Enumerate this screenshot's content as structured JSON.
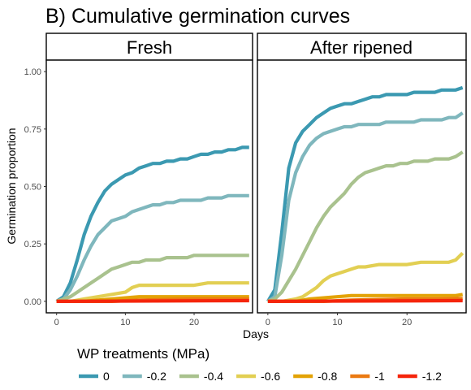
{
  "chart_data": {
    "type": "line",
    "title": "B) Cumulative germination curves",
    "xlabel": "Days",
    "ylabel": "Germination proportion",
    "xlim": [
      -1.5,
      28.5
    ],
    "ylim": [
      -0.05,
      1.05
    ],
    "xticks": [
      0,
      10,
      20
    ],
    "yticks": [
      "0.00",
      "0.25",
      "0.50",
      "0.75",
      "1.00"
    ],
    "grid": false,
    "legend": {
      "title": "WP treatments (MPa)",
      "position": "bottom",
      "entries": [
        {
          "label": "0",
          "color": "#3b99b1"
        },
        {
          "label": "-0.2",
          "color": "#7fb7bd"
        },
        {
          "label": "-0.4",
          "color": "#a9c28e"
        },
        {
          "label": "-0.6",
          "color": "#e2cf53"
        },
        {
          "label": "-0.8",
          "color": "#e3a306"
        },
        {
          "label": "-1",
          "color": "#eb7a12"
        },
        {
          "label": "-1.2",
          "color": "#f5250b"
        }
      ]
    },
    "panels": [
      {
        "title": "Fresh",
        "series": [
          {
            "name": "0",
            "color": "#3b99b1",
            "x": [
              0,
              1,
              2,
              3,
              4,
              5,
              6,
              7,
              8,
              9,
              10,
              11,
              12,
              13,
              14,
              15,
              16,
              17,
              18,
              19,
              20,
              21,
              22,
              23,
              24,
              25,
              26,
              27,
              28
            ],
            "y": [
              0,
              0.02,
              0.08,
              0.18,
              0.29,
              0.37,
              0.43,
              0.48,
              0.51,
              0.53,
              0.55,
              0.56,
              0.58,
              0.59,
              0.6,
              0.6,
              0.61,
              0.61,
              0.62,
              0.62,
              0.63,
              0.64,
              0.64,
              0.65,
              0.65,
              0.66,
              0.66,
              0.67,
              0.67
            ]
          },
          {
            "name": "-0.2",
            "color": "#7fb7bd",
            "x": [
              0,
              1,
              2,
              3,
              4,
              5,
              6,
              7,
              8,
              9,
              10,
              11,
              12,
              13,
              14,
              15,
              16,
              17,
              18,
              19,
              20,
              21,
              22,
              23,
              24,
              25,
              26,
              27,
              28
            ],
            "y": [
              0,
              0.01,
              0.05,
              0.11,
              0.18,
              0.24,
              0.29,
              0.32,
              0.35,
              0.36,
              0.37,
              0.39,
              0.4,
              0.41,
              0.42,
              0.42,
              0.43,
              0.43,
              0.44,
              0.44,
              0.44,
              0.44,
              0.45,
              0.45,
              0.45,
              0.46,
              0.46,
              0.46,
              0.46
            ]
          },
          {
            "name": "-0.4",
            "color": "#a9c28e",
            "x": [
              0,
              1,
              2,
              3,
              4,
              5,
              6,
              7,
              8,
              9,
              10,
              11,
              12,
              13,
              14,
              15,
              16,
              17,
              18,
              19,
              20,
              21,
              22,
              23,
              24,
              25,
              26,
              27,
              28
            ],
            "y": [
              0,
              0.01,
              0.02,
              0.04,
              0.06,
              0.08,
              0.1,
              0.12,
              0.14,
              0.15,
              0.16,
              0.17,
              0.17,
              0.18,
              0.18,
              0.18,
              0.19,
              0.19,
              0.19,
              0.19,
              0.2,
              0.2,
              0.2,
              0.2,
              0.2,
              0.2,
              0.2,
              0.2,
              0.2
            ]
          },
          {
            "name": "-0.6",
            "color": "#e2cf53",
            "x": [
              0,
              2,
              4,
              6,
              8,
              10,
              11,
              12,
              14,
              16,
              18,
              20,
              22,
              24,
              26,
              28
            ],
            "y": [
              0,
              0,
              0.01,
              0.02,
              0.03,
              0.04,
              0.06,
              0.07,
              0.07,
              0.07,
              0.07,
              0.07,
              0.08,
              0.08,
              0.08,
              0.08
            ]
          },
          {
            "name": "-0.8",
            "color": "#e3a306",
            "x": [
              0,
              4,
              6,
              8,
              10,
              12,
              14,
              16,
              20,
              24,
              28
            ],
            "y": [
              0,
              0,
              0.005,
              0.01,
              0.015,
              0.02,
              0.02,
              0.02,
              0.02,
              0.02,
              0.02
            ]
          },
          {
            "name": "-1",
            "color": "#eb7a12",
            "x": [
              0,
              8,
              12,
              16,
              20,
              24,
              28
            ],
            "y": [
              0,
              0,
              0.005,
              0.008,
              0.01,
              0.01,
              0.01
            ]
          },
          {
            "name": "-1.2",
            "color": "#f5250b",
            "x": [
              0,
              28
            ],
            "y": [
              0,
              0.003
            ]
          }
        ]
      },
      {
        "title": "After ripened",
        "series": [
          {
            "name": "0",
            "color": "#3b99b1",
            "x": [
              0,
              1,
              2,
              3,
              4,
              5,
              6,
              7,
              8,
              9,
              10,
              11,
              12,
              13,
              14,
              15,
              16,
              17,
              18,
              19,
              20,
              21,
              22,
              23,
              24,
              25,
              26,
              27,
              28
            ],
            "y": [
              0,
              0.05,
              0.3,
              0.58,
              0.69,
              0.74,
              0.77,
              0.8,
              0.82,
              0.84,
              0.85,
              0.86,
              0.86,
              0.87,
              0.88,
              0.89,
              0.89,
              0.9,
              0.9,
              0.9,
              0.9,
              0.91,
              0.91,
              0.91,
              0.91,
              0.92,
              0.92,
              0.92,
              0.93
            ]
          },
          {
            "name": "-0.2",
            "color": "#7fb7bd",
            "x": [
              0,
              1,
              2,
              3,
              4,
              5,
              6,
              7,
              8,
              9,
              10,
              11,
              12,
              13,
              14,
              15,
              16,
              17,
              18,
              19,
              20,
              21,
              22,
              23,
              24,
              25,
              26,
              27,
              28
            ],
            "y": [
              0,
              0.02,
              0.2,
              0.44,
              0.56,
              0.63,
              0.68,
              0.71,
              0.73,
              0.74,
              0.75,
              0.76,
              0.76,
              0.77,
              0.77,
              0.77,
              0.77,
              0.78,
              0.78,
              0.78,
              0.78,
              0.78,
              0.79,
              0.79,
              0.79,
              0.79,
              0.8,
              0.8,
              0.82
            ]
          },
          {
            "name": "-0.4",
            "color": "#a9c28e",
            "x": [
              0,
              1,
              2,
              3,
              4,
              5,
              6,
              7,
              8,
              9,
              10,
              11,
              12,
              13,
              14,
              15,
              16,
              17,
              18,
              19,
              20,
              21,
              22,
              23,
              24,
              25,
              26,
              27,
              28
            ],
            "y": [
              0,
              0.01,
              0.04,
              0.09,
              0.14,
              0.2,
              0.26,
              0.32,
              0.37,
              0.41,
              0.44,
              0.47,
              0.51,
              0.54,
              0.56,
              0.57,
              0.58,
              0.59,
              0.59,
              0.6,
              0.6,
              0.61,
              0.61,
              0.61,
              0.62,
              0.62,
              0.62,
              0.63,
              0.65
            ]
          },
          {
            "name": "-0.6",
            "color": "#e2cf53",
            "x": [
              0,
              2,
              4,
              5,
              6,
              7,
              8,
              9,
              10,
              11,
              12,
              13,
              14,
              16,
              18,
              20,
              22,
              24,
              26,
              27,
              28
            ],
            "y": [
              0,
              0,
              0.01,
              0.02,
              0.04,
              0.06,
              0.09,
              0.11,
              0.12,
              0.13,
              0.14,
              0.15,
              0.15,
              0.16,
              0.16,
              0.16,
              0.17,
              0.17,
              0.17,
              0.18,
              0.21
            ]
          },
          {
            "name": "-0.8",
            "color": "#e3a306",
            "x": [
              0,
              4,
              6,
              8,
              10,
              12,
              14,
              16,
              20,
              24,
              27,
              28
            ],
            "y": [
              0,
              0,
              0.01,
              0.015,
              0.02,
              0.025,
              0.025,
              0.025,
              0.025,
              0.025,
              0.025,
              0.03
            ]
          },
          {
            "name": "-1",
            "color": "#eb7a12",
            "x": [
              0,
              8,
              12,
              16,
              20,
              24,
              28
            ],
            "y": [
              0,
              0,
              0.005,
              0.008,
              0.01,
              0.01,
              0.012
            ]
          },
          {
            "name": "-1.2",
            "color": "#f5250b",
            "x": [
              0,
              28
            ],
            "y": [
              0,
              0.003
            ]
          }
        ]
      }
    ]
  }
}
